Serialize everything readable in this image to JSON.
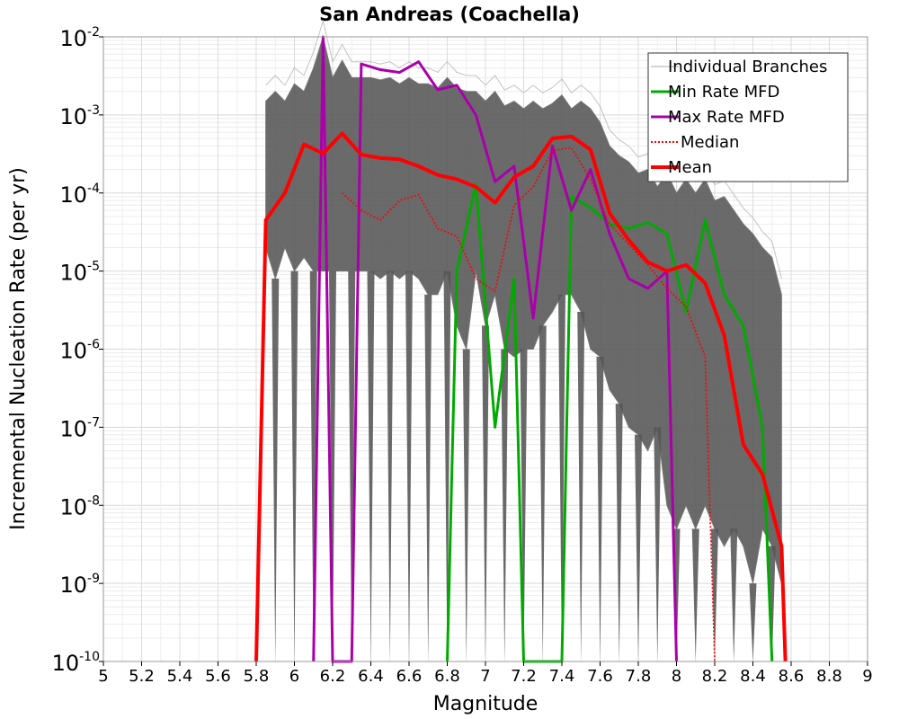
{
  "chart_data": {
    "type": "line",
    "title": "San Andreas (Coachella)",
    "xlabel": "Magnitude",
    "ylabel": "Incremental Nucleation Rate (per yr)",
    "xlim": [
      5,
      9
    ],
    "ylim": [
      1e-10,
      0.01
    ],
    "yscale": "log",
    "grid": true,
    "legend_position": "top-right",
    "x_ticks": [
      "5",
      "5.2",
      "5.4",
      "5.6",
      "5.8",
      "6",
      "6.2",
      "6.4",
      "6.6",
      "6.8",
      "7",
      "7.2",
      "7.4",
      "7.6",
      "7.8",
      "8",
      "8.2",
      "8.4",
      "8.6",
      "8.8",
      "9"
    ],
    "y_ticks": [
      {
        "base": "10",
        "exp": "-2",
        "value": 0.01
      },
      {
        "base": "10",
        "exp": "-3",
        "value": 0.001
      },
      {
        "base": "10",
        "exp": "-4",
        "value": 0.0001
      },
      {
        "base": "10",
        "exp": "-5",
        "value": 1e-05
      },
      {
        "base": "10",
        "exp": "-6",
        "value": 1e-06
      },
      {
        "base": "10",
        "exp": "-7",
        "value": 1e-07
      },
      {
        "base": "10",
        "exp": "-8",
        "value": 1e-08
      },
      {
        "base": "10",
        "exp": "-9",
        "value": 1e-09
      },
      {
        "base": "10",
        "exp": "-10",
        "value": 1e-10
      }
    ],
    "series": [
      {
        "name": "Individual Branches",
        "color": "#555555",
        "style": "band",
        "x": [
          5.85,
          5.9,
          5.95,
          6.0,
          6.05,
          6.1,
          6.15,
          6.2,
          6.25,
          6.3,
          6.35,
          6.4,
          6.45,
          6.5,
          6.55,
          6.6,
          6.65,
          6.7,
          6.75,
          6.8,
          6.85,
          6.9,
          6.95,
          7.0,
          7.05,
          7.1,
          7.15,
          7.2,
          7.25,
          7.3,
          7.35,
          7.4,
          7.45,
          7.5,
          7.55,
          7.6,
          7.65,
          7.7,
          7.75,
          7.8,
          7.85,
          7.9,
          7.95,
          8.0,
          8.05,
          8.1,
          8.15,
          8.2,
          8.25,
          8.3,
          8.35,
          8.4,
          8.45,
          8.5,
          8.55
        ],
        "upper": [
          0.0015,
          0.002,
          0.0015,
          0.0025,
          0.002,
          0.004,
          0.01,
          0.003,
          0.005,
          0.003,
          0.003,
          0.003,
          0.0028,
          0.003,
          0.0025,
          0.003,
          0.0025,
          0.0025,
          0.0022,
          0.003,
          0.0022,
          0.002,
          0.002,
          0.0015,
          0.002,
          0.0013,
          0.0015,
          0.0012,
          0.0015,
          0.0012,
          0.0014,
          0.0018,
          0.0012,
          0.0015,
          0.0012,
          0.0008,
          0.0004,
          0.0003,
          0.00025,
          0.00018,
          0.0002,
          0.00012,
          0.00018,
          0.0001,
          0.00015,
          0.0001,
          0.00015,
          8e-05,
          9e-05,
          6e-05,
          4e-05,
          3e-05,
          2e-05,
          1.5e-05,
          5e-06
        ],
        "lower": [
          2e-05,
          8e-06,
          2e-05,
          1e-05,
          1.5e-05,
          1e-05,
          1e-05,
          1e-05,
          1e-05,
          1e-05,
          1e-05,
          1e-05,
          8e-06,
          1e-05,
          8e-06,
          1e-05,
          8e-06,
          5e-06,
          5e-06,
          1e-05,
          2e-06,
          1e-06,
          1e-05,
          2e-06,
          5e-06,
          1e-06,
          8e-07,
          1e-06,
          1e-06,
          2e-06,
          3e-06,
          5e-06,
          5e-06,
          3e-06,
          1e-06,
          8e-07,
          3e-07,
          2e-07,
          1e-07,
          8e-08,
          5e-08,
          1e-07,
          1e-08,
          5e-09,
          1e-08,
          5e-09,
          1e-08,
          5e-09,
          3e-09,
          5e-09,
          3e-09,
          1e-09,
          5e-09,
          3e-09,
          1e-09
        ]
      },
      {
        "name": "Min Rate MFD",
        "color": "#00aa00",
        "style": "solid",
        "x": [
          6.8,
          6.85,
          6.95,
          7.05,
          7.15,
          7.2,
          7.4,
          7.45,
          7.55,
          7.65,
          7.75,
          7.85,
          7.95,
          8.05,
          8.15,
          8.25,
          8.35,
          8.45,
          8.5
        ],
        "y": [
          1e-10,
          1e-05,
          0.00013,
          1e-07,
          8e-06,
          1e-10,
          1e-10,
          9e-05,
          6.5e-05,
          4e-05,
          3.5e-05,
          4.2e-05,
          3e-05,
          3e-06,
          4.5e-05,
          5e-06,
          2e-06,
          1e-07,
          1e-10
        ]
      },
      {
        "name": "Max Rate MFD",
        "color": "#aa00aa",
        "style": "solid",
        "x": [
          6.1,
          6.15,
          6.2,
          6.3,
          6.35,
          6.45,
          6.55,
          6.65,
          6.75,
          6.85,
          6.95,
          7.05,
          7.15,
          7.25,
          7.35,
          7.45,
          7.55,
          7.65,
          7.75,
          7.85,
          7.95,
          8.0
        ],
        "y": [
          1e-10,
          0.01,
          1e-10,
          1e-10,
          0.0045,
          0.0038,
          0.0035,
          0.0048,
          0.0021,
          0.0024,
          0.001,
          0.00014,
          0.00022,
          2.5e-06,
          0.0004,
          6e-05,
          0.0002,
          3e-05,
          8e-06,
          6e-06,
          1e-05,
          1e-10
        ]
      },
      {
        "name": "Median",
        "color": "#ff0000",
        "style": "dotted",
        "x": [
          6.25,
          6.35,
          6.45,
          6.55,
          6.65,
          6.75,
          6.85,
          6.95,
          7.05,
          7.15,
          7.25,
          7.35,
          7.45,
          7.55,
          7.65,
          7.75,
          7.85,
          7.95,
          8.05,
          8.15,
          8.2
        ],
        "y": [
          0.0001,
          6e-05,
          4.5e-05,
          8e-05,
          9.5e-05,
          3.5e-05,
          2.8e-05,
          8e-06,
          5.5e-06,
          7e-05,
          0.00012,
          0.00035,
          0.00038,
          0.00015,
          4e-05,
          2.2e-05,
          1.2e-05,
          6e-06,
          3.5e-06,
          8e-07,
          1e-10
        ]
      },
      {
        "name": "Mean",
        "color": "#ff0000",
        "style": "solid-thick",
        "x": [
          5.8,
          5.85,
          5.95,
          6.05,
          6.15,
          6.25,
          6.35,
          6.45,
          6.55,
          6.65,
          6.75,
          6.85,
          6.95,
          7.05,
          7.15,
          7.25,
          7.35,
          7.45,
          7.55,
          7.65,
          7.75,
          7.85,
          7.95,
          8.05,
          8.15,
          8.25,
          8.35,
          8.45,
          8.55,
          8.57
        ],
        "y": [
          1e-10,
          4.5e-05,
          0.0001,
          0.00042,
          0.00032,
          0.00058,
          0.00031,
          0.00028,
          0.00027,
          0.00022,
          0.00017,
          0.00015,
          0.00012,
          7.5e-05,
          0.00016,
          0.00022,
          0.0005,
          0.00053,
          0.00036,
          5.5e-05,
          2.5e-05,
          1.3e-05,
          1e-05,
          1.2e-05,
          7e-06,
          1.5e-06,
          6e-08,
          2.5e-08,
          3e-09,
          1e-10
        ]
      }
    ]
  }
}
